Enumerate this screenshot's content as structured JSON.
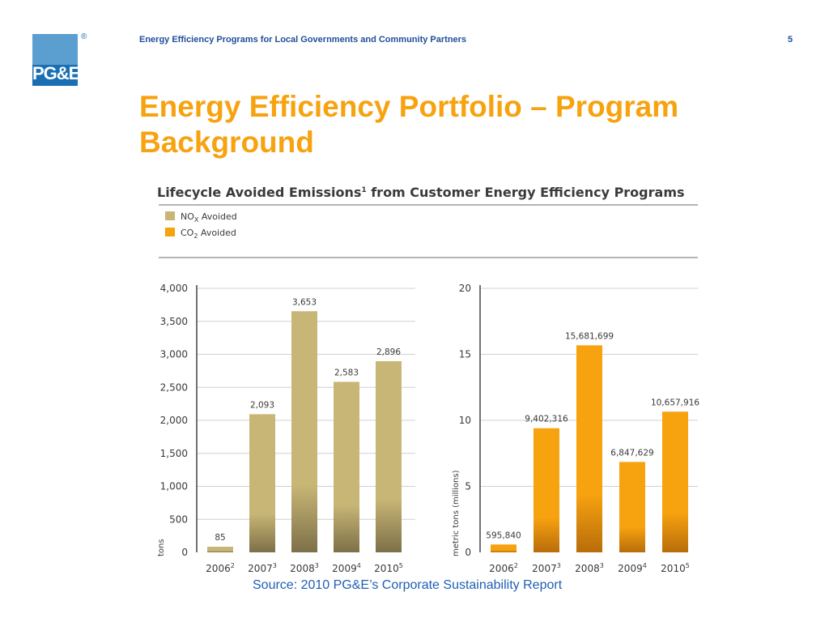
{
  "header": {
    "text": "Energy Efficiency Programs for Local Governments and Community Partners",
    "page_number": "5",
    "logo_text": "PG&E",
    "registered_mark": "®"
  },
  "title": "Energy Efficiency Portfolio – Program Background",
  "source": "Source: 2010 PG&E’s Corporate Sustainability Report",
  "colors": {
    "accent": "#f7a20f",
    "header_blue": "#1f4e9a",
    "nox": "#c8b676",
    "co2": "#f7a20f",
    "logo_blue": "#1a6fb3"
  },
  "chart_data": [
    {
      "type": "bar",
      "title": "Lifecycle Avoided Emissions",
      "title_sup": "1",
      "title_rest": " from Customer Energy Efficiency Programs",
      "legend": "top-left",
      "legend_label": {
        "main": "NO",
        "sub": "X",
        "rest": " Avoided"
      },
      "categories": [
        {
          "label": "2006",
          "sup": "2"
        },
        {
          "label": "2007",
          "sup": "3"
        },
        {
          "label": "2008",
          "sup": "3"
        },
        {
          "label": "2009",
          "sup": "4"
        },
        {
          "label": "2010",
          "sup": "5"
        }
      ],
      "values": [
        85,
        2093,
        3653,
        2583,
        2896
      ],
      "value_labels": [
        "85",
        "2,093",
        "3,653",
        "2,583",
        "2,896"
      ],
      "ylabel": "tons",
      "ylim": [
        0,
        4000
      ],
      "yticks": [
        "0",
        "500",
        "1,000",
        "1,500",
        "2,000",
        "2,500",
        "3,000",
        "3,500",
        "4,000"
      ],
      "grid": true
    },
    {
      "type": "bar",
      "legend_label": {
        "main": "CO",
        "sub": "2",
        "rest": " Avoided"
      },
      "categories": [
        {
          "label": "2006",
          "sup": "2"
        },
        {
          "label": "2007",
          "sup": "3"
        },
        {
          "label": "2008",
          "sup": "3"
        },
        {
          "label": "2009",
          "sup": "4"
        },
        {
          "label": "2010",
          "sup": "5"
        }
      ],
      "values": [
        595840,
        9402316,
        15681699,
        6847629,
        10657916
      ],
      "value_labels": [
        "595,840",
        "9,402,316",
        "15,681,699",
        "6,847,629",
        "10,657,916"
      ],
      "ylabel": "metric tons (millions)",
      "ylim": [
        0,
        20
      ],
      "yticks": [
        "0",
        "5",
        "10",
        "15",
        "20"
      ],
      "grid": true
    }
  ]
}
